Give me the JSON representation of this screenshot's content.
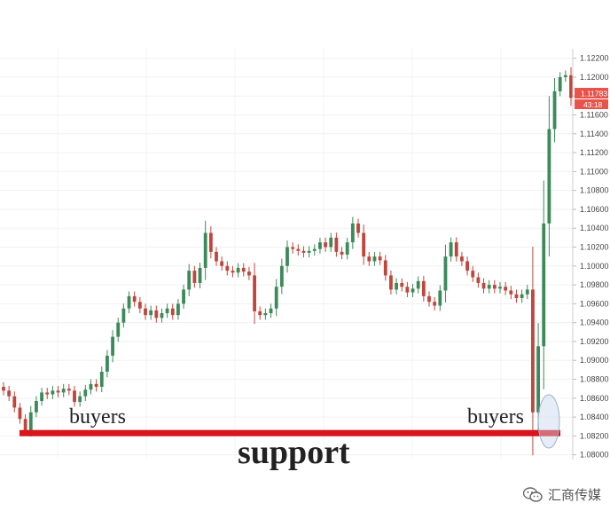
{
  "chart_data": {
    "type": "candlestick",
    "ylim": [
      1.0795,
      1.123
    ],
    "y_ticks": [
      1.08,
      1.082,
      1.084,
      1.086,
      1.088,
      1.09,
      1.092,
      1.094,
      1.096,
      1.098,
      1.1,
      1.102,
      1.104,
      1.106,
      1.108,
      1.11,
      1.112,
      1.114,
      1.116,
      1.118,
      1.12,
      1.122
    ],
    "y_tick_labels": [
      "1.08000",
      "1.08200",
      "1.08400",
      "1.08600",
      "1.08800",
      "1.09000",
      "1.09200",
      "1.09400",
      "1.09600",
      "1.09800",
      "1.10000",
      "1.10200",
      "1.10400",
      "1.10600",
      "1.10800",
      "1.11000",
      "1.11200",
      "1.11400",
      "1.11600",
      "1.11800",
      "1.12000",
      "1.12200"
    ],
    "price_tag": {
      "value": "1.11783",
      "timer": "43:18",
      "color": "#e8534b"
    },
    "support_level": 1.0823,
    "support_color": "#d9141b",
    "up_color": "#3c8a5a",
    "down_color": "#c0463d",
    "closes": [
      1.0868,
      1.0862,
      1.085,
      1.0838,
      1.0826,
      1.0845,
      1.0857,
      1.0866,
      1.0864,
      1.0868,
      1.0866,
      1.087,
      1.0868,
      1.0856,
      1.0862,
      1.0869,
      1.0875,
      1.0872,
      1.0888,
      1.0905,
      1.0925,
      1.094,
      1.0955,
      1.0968,
      1.0962,
      1.0955,
      1.0948,
      1.0953,
      1.0945,
      1.095,
      1.0955,
      1.0948,
      1.096,
      1.0975,
      1.0995,
      1.0982,
      1.0998,
      1.1035,
      1.1015,
      1.1005,
      1.1,
      1.0995,
      1.0993,
      1.0998,
      1.0994,
      1.099,
      1.0952,
      1.0948,
      1.095,
      1.0955,
      1.0978,
      1.1,
      1.102,
      1.1018,
      1.1016,
      1.1014,
      1.1016,
      1.1018,
      1.1025,
      1.102,
      1.103,
      1.1015,
      1.1012,
      1.1025,
      1.1045,
      1.1035,
      1.101,
      1.1005,
      1.101,
      1.1006,
      1.099,
      1.0975,
      1.0982,
      1.0978,
      1.0972,
      1.0976,
      1.0984,
      1.0968,
      1.0962,
      1.0958,
      1.0974,
      1.101,
      1.1025,
      1.101,
      1.1005,
      1.0995,
      1.0988,
      1.0982,
      1.0976,
      1.098,
      1.0976,
      1.0978,
      1.0974,
      1.097,
      1.0966,
      1.097,
      1.0975,
      1.0845,
      1.0915,
      1.1045,
      1.1145,
      1.1185,
      1.12,
      1.1202,
      1.1178
    ],
    "annotations": [
      {
        "text": "buyers",
        "near": "left-support"
      },
      {
        "text": "buyers",
        "near": "right-support"
      },
      {
        "text": "support",
        "near": "below-support-line"
      }
    ]
  },
  "watermark": {
    "text": "汇商传媒",
    "icon": "wechat-icon"
  }
}
